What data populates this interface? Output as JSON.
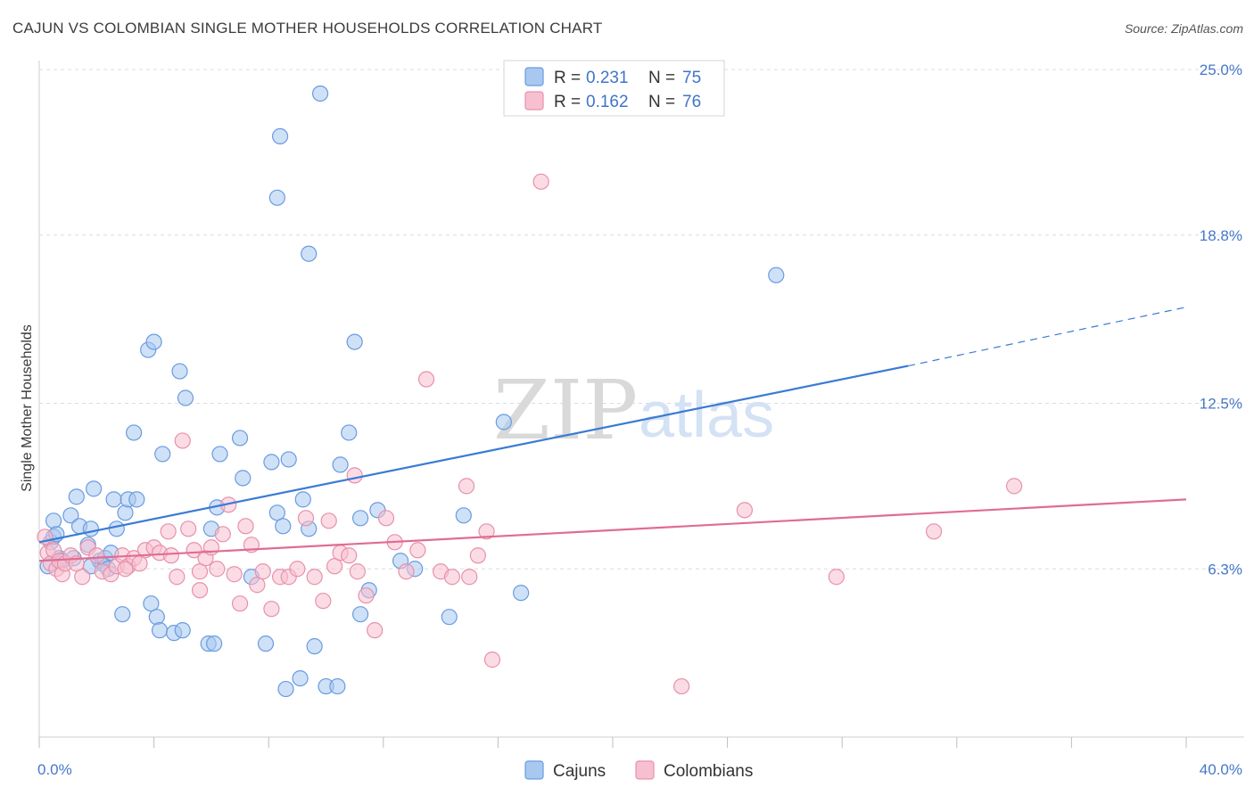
{
  "title": "CAJUN VS COLOMBIAN SINGLE MOTHER HOUSEHOLDS CORRELATION CHART",
  "source": "Source: ZipAtlas.com",
  "watermark": {
    "zip": "ZIP",
    "atlas": "atlas"
  },
  "legend": {
    "r_label": "R =",
    "n_label": "N =",
    "rows": [
      {
        "r": "0.231",
        "n": "75"
      },
      {
        "r": "0.162",
        "n": "76"
      }
    ]
  },
  "bottom_legend": [
    "Cajuns",
    "Colombians"
  ],
  "chart_data": {
    "type": "scatter",
    "title": "CAJUN VS COLOMBIAN SINGLE MOTHER HOUSEHOLDS CORRELATION CHART",
    "xlabel": "",
    "ylabel": "Single Mother Households",
    "xlim": [
      0,
      40
    ],
    "ylim": [
      0,
      25
    ],
    "x_tick_labels": [
      "0.0%",
      "40.0%"
    ],
    "y_ticks": [
      6.3,
      12.5,
      18.8,
      25.0
    ],
    "y_tick_labels": [
      "6.3%",
      "12.5%",
      "18.8%",
      "25.0%"
    ],
    "grid": true,
    "legend_position": "top-center",
    "colors": {
      "cajuns_fill": "#a8c8f0",
      "cajuns_stroke": "#6a9be0",
      "cajuns_line": "#3a7bd5",
      "colombians_fill": "#f7c0d0",
      "colombians_stroke": "#e890ab",
      "colombians_line": "#e06c93"
    },
    "series": [
      {
        "name": "Cajuns",
        "r": 0.231,
        "n": 75,
        "trend": {
          "x0": 0,
          "y0": 7.3,
          "x1": 30.3,
          "y1": 13.9,
          "dashed_to_x": 40,
          "dashed_to_y": 16.1
        },
        "points": [
          [
            0.3,
            6.4
          ],
          [
            0.4,
            7.3
          ],
          [
            0.5,
            7.5
          ],
          [
            0.5,
            8.1
          ],
          [
            0.6,
            7.6
          ],
          [
            0.7,
            6.7
          ],
          [
            0.8,
            6.6
          ],
          [
            1.1,
            8.3
          ],
          [
            1.2,
            6.7
          ],
          [
            1.3,
            9.0
          ],
          [
            1.4,
            7.9
          ],
          [
            1.7,
            7.2
          ],
          [
            1.8,
            7.8
          ],
          [
            1.9,
            9.3
          ],
          [
            2.1,
            6.6
          ],
          [
            2.2,
            6.5
          ],
          [
            2.3,
            6.7
          ],
          [
            2.5,
            6.9
          ],
          [
            2.6,
            8.9
          ],
          [
            2.7,
            7.8
          ],
          [
            3.0,
            8.4
          ],
          [
            3.1,
            8.9
          ],
          [
            3.3,
            11.4
          ],
          [
            3.4,
            8.9
          ],
          [
            3.8,
            14.5
          ],
          [
            4.0,
            14.8
          ],
          [
            4.3,
            10.6
          ],
          [
            4.9,
            13.7
          ],
          [
            5.1,
            12.7
          ],
          [
            6.0,
            7.8
          ],
          [
            6.2,
            8.6
          ],
          [
            6.3,
            10.6
          ],
          [
            7.0,
            11.2
          ],
          [
            7.1,
            9.7
          ],
          [
            7.4,
            6.0
          ],
          [
            8.1,
            10.3
          ],
          [
            8.3,
            8.4
          ],
          [
            8.5,
            7.9
          ],
          [
            8.7,
            10.4
          ],
          [
            9.2,
            8.9
          ],
          [
            9.4,
            7.8
          ],
          [
            10.5,
            10.2
          ],
          [
            10.8,
            11.4
          ],
          [
            11.2,
            8.2
          ],
          [
            11.5,
            5.5
          ],
          [
            11.8,
            8.5
          ],
          [
            12.6,
            6.6
          ],
          [
            13.1,
            6.3
          ],
          [
            14.8,
            8.3
          ],
          [
            16.2,
            11.8
          ],
          [
            1.8,
            6.4
          ],
          [
            2.4,
            6.3
          ],
          [
            2.9,
            4.6
          ],
          [
            3.9,
            5.0
          ],
          [
            4.1,
            4.5
          ],
          [
            4.2,
            4.0
          ],
          [
            4.7,
            3.9
          ],
          [
            5.0,
            4.0
          ],
          [
            5.9,
            3.5
          ],
          [
            6.1,
            3.5
          ],
          [
            7.9,
            3.5
          ],
          [
            8.6,
            1.8
          ],
          [
            9.1,
            2.2
          ],
          [
            9.6,
            3.4
          ],
          [
            10.0,
            1.9
          ],
          [
            10.4,
            1.9
          ],
          [
            11.2,
            4.6
          ],
          [
            14.3,
            4.5
          ],
          [
            16.8,
            5.4
          ],
          [
            8.4,
            22.5
          ],
          [
            9.8,
            24.1
          ],
          [
            8.3,
            20.2
          ],
          [
            9.4,
            18.1
          ],
          [
            11.0,
            14.8
          ],
          [
            25.7,
            17.3
          ]
        ]
      },
      {
        "name": "Colombians",
        "r": 0.162,
        "n": 76,
        "trend": {
          "x0": 0,
          "y0": 6.6,
          "x1": 40,
          "y1": 8.9
        },
        "points": [
          [
            0.2,
            7.5
          ],
          [
            0.3,
            6.9
          ],
          [
            0.4,
            6.5
          ],
          [
            0.5,
            7.0
          ],
          [
            0.6,
            6.3
          ],
          [
            0.7,
            6.6
          ],
          [
            0.8,
            6.1
          ],
          [
            0.9,
            6.5
          ],
          [
            1.1,
            6.8
          ],
          [
            1.3,
            6.5
          ],
          [
            1.5,
            6.0
          ],
          [
            1.7,
            7.1
          ],
          [
            2.0,
            6.8
          ],
          [
            2.2,
            6.2
          ],
          [
            2.5,
            6.1
          ],
          [
            2.7,
            6.4
          ],
          [
            2.9,
            6.8
          ],
          [
            3.1,
            6.4
          ],
          [
            3.3,
            6.7
          ],
          [
            3.5,
            6.5
          ],
          [
            3.7,
            7.0
          ],
          [
            4.0,
            7.1
          ],
          [
            4.2,
            6.9
          ],
          [
            4.5,
            7.7
          ],
          [
            4.8,
            6.0
          ],
          [
            5.0,
            11.1
          ],
          [
            5.2,
            7.8
          ],
          [
            5.4,
            7.0
          ],
          [
            5.6,
            5.5
          ],
          [
            5.8,
            6.7
          ],
          [
            6.0,
            7.1
          ],
          [
            6.2,
            6.3
          ],
          [
            6.4,
            7.6
          ],
          [
            6.6,
            8.7
          ],
          [
            6.8,
            6.1
          ],
          [
            7.0,
            5.0
          ],
          [
            7.2,
            7.9
          ],
          [
            7.4,
            7.2
          ],
          [
            7.6,
            5.7
          ],
          [
            7.8,
            6.2
          ],
          [
            8.1,
            4.8
          ],
          [
            8.4,
            6.0
          ],
          [
            8.7,
            6.0
          ],
          [
            9.0,
            6.3
          ],
          [
            9.3,
            8.2
          ],
          [
            9.6,
            6.0
          ],
          [
            9.9,
            5.1
          ],
          [
            10.1,
            8.1
          ],
          [
            10.3,
            6.4
          ],
          [
            10.5,
            6.9
          ],
          [
            10.8,
            6.8
          ],
          [
            11.1,
            6.2
          ],
          [
            11.4,
            5.3
          ],
          [
            11.7,
            4.0
          ],
          [
            12.1,
            8.2
          ],
          [
            12.4,
            7.3
          ],
          [
            12.8,
            6.2
          ],
          [
            13.2,
            7.0
          ],
          [
            13.5,
            13.4
          ],
          [
            14.0,
            6.2
          ],
          [
            14.4,
            6.0
          ],
          [
            15.0,
            6.0
          ],
          [
            15.3,
            6.8
          ],
          [
            15.6,
            7.7
          ],
          [
            11.0,
            9.8
          ],
          [
            14.9,
            9.4
          ],
          [
            15.8,
            2.9
          ],
          [
            17.5,
            20.8
          ],
          [
            22.4,
            1.9
          ],
          [
            24.6,
            8.5
          ],
          [
            27.8,
            6.0
          ],
          [
            31.2,
            7.7
          ],
          [
            34.0,
            9.4
          ],
          [
            5.6,
            6.2
          ],
          [
            3.0,
            6.3
          ],
          [
            4.6,
            6.8
          ]
        ]
      }
    ]
  }
}
